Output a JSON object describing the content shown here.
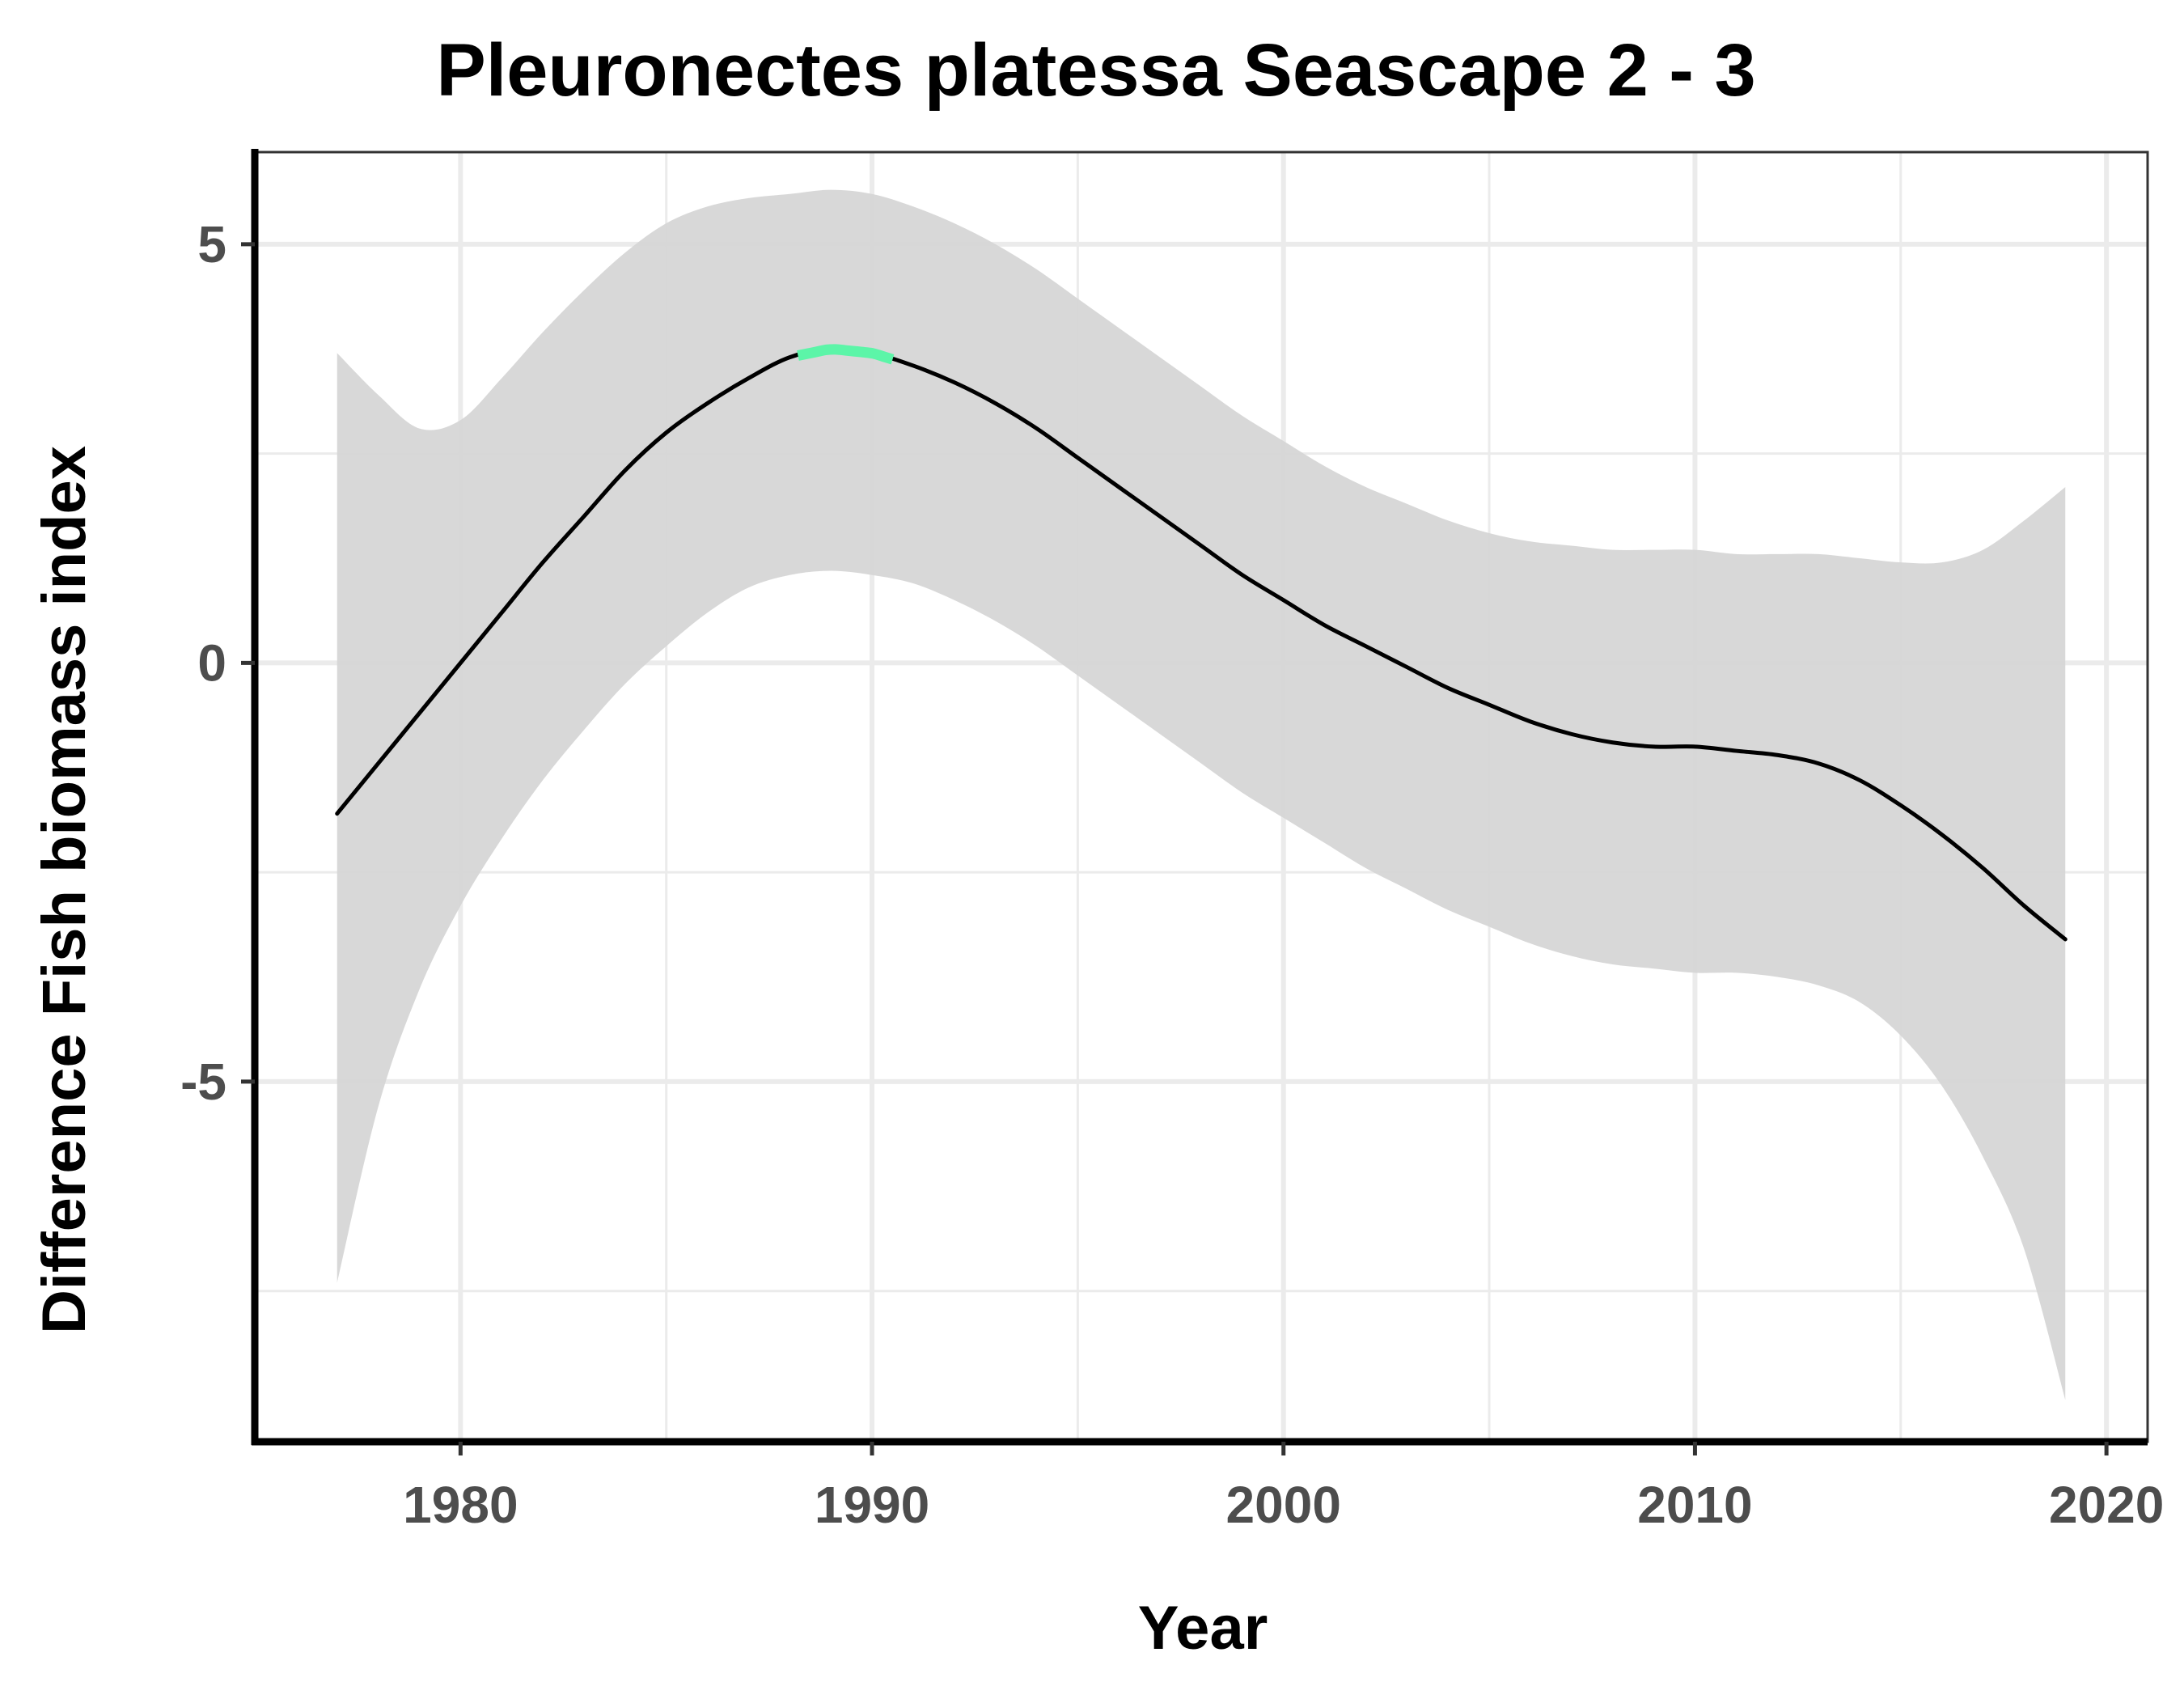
{
  "chart_data": {
    "type": "line",
    "title": "Pleuronectes platessa Seascape 2 - 3",
    "xlabel": "Year",
    "ylabel": "Difference Fish biomass index",
    "xlim": [
      1975,
      2021
    ],
    "ylim": [
      -9.3,
      6.1
    ],
    "x_ticks": [
      1980,
      1990,
      2000,
      2010,
      2020
    ],
    "y_ticks": [
      -5,
      0,
      5
    ],
    "x_tick_labels": [
      "1980",
      "1990",
      "2000",
      "2010",
      "2020"
    ],
    "y_tick_labels": [
      "-5",
      "0",
      "5"
    ],
    "grid": true,
    "legend": "none",
    "colors": {
      "line": "#000000",
      "ribbon": "#d6d6d6",
      "highlight": "#5cf5a8",
      "grid": "#ebebeb",
      "tick_label": "#4d4d4d"
    },
    "series": [
      {
        "x": [
          1977,
          1978,
          1979,
          1980,
          1981,
          1982,
          1983,
          1984,
          1985,
          1986,
          1987,
          1988,
          1989,
          1990,
          1991,
          1992,
          1993,
          1994,
          1995,
          1996,
          1997,
          1998,
          1999,
          2000,
          2001,
          2002,
          2003,
          2004,
          2005,
          2006,
          2007,
          2008,
          2009,
          2010,
          2011,
          2012,
          2013,
          2014,
          2015,
          2016,
          2017,
          2018,
          2019
        ],
        "y": [
          -1.8,
          -1.2,
          -0.6,
          0.0,
          0.6,
          1.2,
          1.75,
          2.3,
          2.75,
          3.1,
          3.4,
          3.65,
          3.75,
          3.7,
          3.55,
          3.35,
          3.1,
          2.8,
          2.45,
          2.1,
          1.75,
          1.4,
          1.05,
          0.75,
          0.45,
          0.2,
          -0.05,
          -0.3,
          -0.5,
          -0.7,
          -0.85,
          -0.95,
          -1.0,
          -1.0,
          -1.05,
          -1.1,
          -1.2,
          -1.4,
          -1.7,
          -2.05,
          -2.45,
          -2.9,
          -3.3
        ],
        "lower": [
          -7.4,
          -5.3,
          -3.9,
          -2.9,
          -2.1,
          -1.4,
          -0.8,
          -0.25,
          0.2,
          0.6,
          0.9,
          1.05,
          1.1,
          1.05,
          0.95,
          0.75,
          0.5,
          0.2,
          -0.15,
          -0.5,
          -0.85,
          -1.2,
          -1.55,
          -1.85,
          -2.15,
          -2.45,
          -2.7,
          -2.95,
          -3.15,
          -3.35,
          -3.5,
          -3.6,
          -3.65,
          -3.7,
          -3.7,
          -3.75,
          -3.85,
          -4.05,
          -4.45,
          -5.05,
          -5.9,
          -7.0,
          -8.8
        ],
        "upper": [
          3.7,
          3.2,
          2.8,
          2.9,
          3.4,
          3.95,
          4.45,
          4.9,
          5.25,
          5.45,
          5.55,
          5.6,
          5.65,
          5.6,
          5.45,
          5.25,
          5.0,
          4.7,
          4.35,
          4.0,
          3.65,
          3.3,
          2.95,
          2.65,
          2.35,
          2.1,
          1.9,
          1.7,
          1.55,
          1.45,
          1.4,
          1.35,
          1.35,
          1.35,
          1.3,
          1.3,
          1.3,
          1.25,
          1.2,
          1.2,
          1.35,
          1.7,
          2.1
        ],
        "highlight_range": [
          1988.2,
          1990.5
        ]
      }
    ]
  }
}
